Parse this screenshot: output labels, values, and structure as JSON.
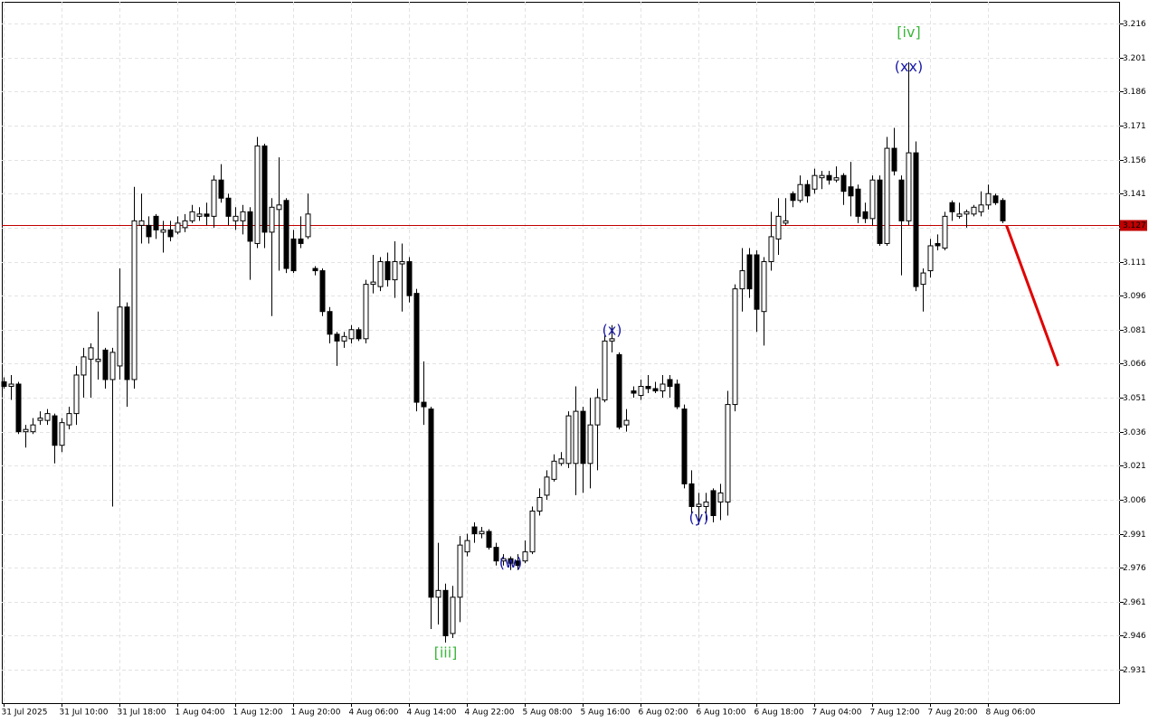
{
  "chart_data": {
    "type": "candlestick",
    "categories": [
      "31 Jul 2025",
      null,
      null,
      null,
      null,
      null,
      null,
      null,
      "31 Jul 10:00",
      null,
      null,
      null,
      null,
      null,
      null,
      null,
      "31 Jul 18:00",
      null,
      null,
      null,
      null,
      null,
      null,
      null,
      "1 Aug 04:00",
      null,
      null,
      null,
      null,
      null,
      null,
      null,
      "1 Aug 12:00",
      null,
      null,
      null,
      null,
      null,
      null,
      null,
      "1 Aug 20:00",
      null,
      null,
      null,
      null,
      null,
      null,
      null,
      "4 Aug 06:00",
      null,
      null,
      null,
      null,
      null,
      null,
      null,
      "4 Aug 14:00",
      null,
      null,
      null,
      null,
      null,
      null,
      null,
      "4 Aug 22:00",
      null,
      null,
      null,
      null,
      null,
      null,
      null,
      "5 Aug 08:00",
      null,
      null,
      null,
      null,
      null,
      null,
      null,
      "5 Aug 16:00",
      null,
      null,
      null,
      null,
      null,
      null,
      null,
      "6 Aug 02:00",
      null,
      null,
      null,
      null,
      null,
      null,
      null,
      "6 Aug 10:00",
      null,
      null,
      null,
      null,
      null,
      null,
      null,
      "6 Aug 18:00",
      null,
      null,
      null,
      null,
      null,
      null,
      null,
      "7 Aug 04:00",
      null,
      null,
      null,
      null,
      null,
      null,
      null,
      "7 Aug 12:00",
      null,
      null,
      null,
      null,
      null,
      null,
      null,
      "7 Aug 20:00",
      null,
      null,
      null,
      null,
      null,
      null,
      null,
      "8 Aug 06:00",
      null,
      null
    ],
    "open": [
      3.058,
      3.056,
      3.057,
      3.036,
      3.036,
      3.041,
      3.041,
      3.043,
      3.03,
      3.039,
      3.044,
      3.061,
      3.068,
      3.067,
      3.072,
      3.059,
      3.065,
      3.091,
      3.059,
      3.127,
      3.127,
      3.131,
      3.124,
      3.125,
      3.124,
      3.126,
      3.129,
      3.131,
      3.132,
      3.131,
      3.147,
      3.139,
      3.129,
      3.129,
      3.133,
      3.119,
      3.162,
      3.124,
      3.134,
      3.138,
      3.121,
      3.121,
      3.122,
      3.108,
      3.107,
      3.089,
      3.079,
      3.076,
      3.077,
      3.081,
      3.077,
      3.101,
      3.1,
      3.111,
      3.103,
      3.11,
      3.111,
      3.097,
      3.049,
      3.046,
      2.963,
      2.966,
      2.947,
      2.963,
      2.983,
      2.994,
      2.991,
      2.992,
      2.985,
      2.979,
      2.98,
      2.979,
      2.979,
      2.983,
      3.001,
      3.008,
      3.015,
      3.022,
      3.022,
      3.022,
      3.045,
      3.022,
      3.039,
      3.05,
      3.076,
      3.07,
      3.039,
      3.054,
      3.052,
      3.056,
      3.055,
      3.054,
      3.059,
      3.057,
      3.046,
      3.013,
      3.003,
      3.003,
      3.01,
      3.005,
      3.005,
      3.048,
      3.099,
      3.114,
      3.114,
      3.089,
      3.111,
      3.121,
      3.128,
      3.141,
      3.138,
      3.145,
      3.143,
      3.148,
      3.149,
      3.147,
      3.149,
      3.144,
      3.143,
      3.133,
      3.13,
      3.147,
      3.119,
      3.161,
      3.147,
      3.129,
      3.159,
      3.101,
      3.107,
      3.119,
      3.117,
      3.137,
      3.131,
      3.132,
      3.132,
      3.133,
      3.136,
      3.14,
      3.138
    ],
    "high": [
      3.06,
      3.061,
      3.058,
      3.039,
      3.042,
      3.045,
      3.046,
      3.044,
      3.042,
      3.047,
      3.065,
      3.073,
      3.075,
      3.089,
      3.073,
      3.073,
      3.108,
      3.093,
      3.144,
      3.141,
      3.131,
      3.132,
      3.129,
      3.129,
      3.131,
      3.132,
      3.136,
      3.135,
      3.137,
      3.149,
      3.154,
      3.141,
      3.135,
      3.136,
      3.135,
      3.166,
      3.163,
      3.139,
      3.157,
      3.139,
      3.125,
      3.131,
      3.141,
      3.109,
      3.108,
      3.091,
      3.08,
      3.08,
      3.083,
      3.082,
      3.103,
      3.114,
      3.113,
      3.115,
      3.12,
      3.119,
      3.113,
      3.099,
      3.067,
      3.047,
      2.987,
      2.969,
      2.968,
      2.99,
      2.991,
      2.996,
      2.994,
      2.993,
      2.987,
      2.982,
      2.981,
      2.982,
      2.988,
      3.003,
      3.011,
      3.019,
      3.026,
      3.027,
      3.045,
      3.056,
      3.047,
      3.051,
      3.055,
      3.079,
      3.083,
      3.071,
      3.046,
      3.056,
      3.059,
      3.061,
      3.058,
      3.061,
      3.061,
      3.059,
      3.048,
      3.019,
      3.009,
      3.009,
      3.011,
      3.013,
      3.054,
      3.101,
      3.117,
      3.117,
      3.116,
      3.113,
      3.133,
      3.139,
      3.139,
      3.142,
      3.149,
      3.147,
      3.152,
      3.151,
      3.151,
      3.153,
      3.15,
      3.155,
      3.145,
      3.137,
      3.149,
      3.149,
      3.166,
      3.17,
      3.149,
      3.199,
      3.164,
      3.108,
      3.121,
      3.123,
      3.133,
      3.138,
      3.137,
      3.134,
      3.136,
      3.142,
      3.145,
      3.141,
      3.139
    ],
    "low": [
      3.055,
      3.05,
      3.035,
      3.029,
      3.035,
      3.039,
      3.039,
      3.022,
      3.027,
      3.037,
      3.039,
      3.051,
      3.051,
      3.059,
      3.055,
      3.003,
      3.059,
      3.047,
      3.055,
      3.119,
      3.119,
      3.121,
      3.115,
      3.12,
      3.123,
      3.124,
      3.128,
      3.129,
      3.127,
      3.126,
      3.137,
      3.127,
      3.125,
      3.123,
      3.103,
      3.117,
      3.117,
      3.087,
      3.107,
      3.106,
      3.106,
      3.117,
      3.121,
      3.105,
      3.087,
      3.075,
      3.065,
      3.073,
      3.075,
      3.076,
      3.075,
      3.097,
      3.098,
      3.1,
      3.095,
      3.089,
      3.093,
      3.045,
      3.039,
      2.949,
      2.951,
      2.943,
      2.945,
      2.952,
      2.981,
      2.987,
      2.989,
      2.984,
      2.977,
      2.977,
      2.975,
      2.975,
      2.978,
      2.982,
      2.999,
      3.006,
      3.014,
      3.021,
      3.02,
      3.008,
      3.009,
      3.011,
      3.019,
      3.049,
      3.071,
      3.037,
      3.036,
      3.051,
      3.05,
      3.053,
      3.053,
      3.051,
      3.051,
      3.046,
      3.011,
      3.0,
      2.995,
      2.997,
      2.996,
      2.997,
      2.999,
      3.045,
      3.089,
      3.095,
      3.08,
      3.074,
      3.107,
      3.114,
      3.127,
      3.135,
      3.137,
      3.137,
      3.141,
      3.143,
      3.145,
      3.146,
      3.136,
      3.131,
      3.128,
      3.128,
      3.127,
      3.118,
      3.118,
      3.149,
      3.105,
      3.127,
      3.098,
      3.089,
      3.104,
      3.116,
      3.116,
      3.129,
      3.13,
      3.126,
      3.131,
      3.131,
      3.134,
      3.136,
      3.128
    ],
    "close": [
      3.056,
      3.057,
      3.036,
      3.037,
      3.039,
      3.042,
      3.044,
      3.03,
      3.04,
      3.044,
      3.061,
      3.069,
      3.073,
      3.068,
      3.059,
      3.071,
      3.091,
      3.059,
      3.129,
      3.129,
      3.122,
      3.125,
      3.125,
      3.122,
      3.128,
      3.129,
      3.133,
      3.132,
      3.131,
      3.147,
      3.139,
      3.131,
      3.131,
      3.133,
      3.12,
      3.162,
      3.124,
      3.135,
      3.136,
      3.108,
      3.107,
      3.119,
      3.132,
      3.107,
      3.089,
      3.079,
      3.076,
      3.078,
      3.081,
      3.077,
      3.101,
      3.102,
      3.111,
      3.103,
      3.111,
      3.111,
      3.096,
      3.049,
      3.047,
      2.963,
      2.966,
      2.946,
      2.963,
      2.986,
      2.988,
      2.991,
      2.992,
      2.985,
      2.979,
      2.98,
      2.978,
      2.977,
      2.983,
      3.001,
      3.007,
      3.016,
      3.023,
      3.024,
      3.043,
      3.045,
      3.022,
      3.039,
      3.051,
      3.076,
      3.077,
      3.038,
      3.041,
      3.053,
      3.056,
      3.055,
      3.054,
      3.057,
      3.056,
      3.047,
      3.013,
      3.003,
      3.004,
      3.005,
      2.999,
      3.009,
      3.048,
      3.099,
      3.107,
      3.099,
      3.09,
      3.111,
      3.122,
      3.131,
      3.129,
      3.138,
      3.145,
      3.14,
      3.149,
      3.149,
      3.147,
      3.148,
      3.142,
      3.14,
      3.131,
      3.13,
      3.147,
      3.119,
      3.161,
      3.151,
      3.129,
      3.159,
      3.1,
      3.106,
      3.118,
      3.118,
      3.131,
      3.133,
      3.132,
      3.133,
      3.135,
      3.136,
      3.141,
      3.137,
      3.129
    ],
    "up_color": "#ffffff",
    "down_color": "#000000",
    "ylim": [
      2.9163,
      3.2256
    ],
    "yticks": [
      3.216,
      3.201,
      3.186,
      3.171,
      3.156,
      3.141,
      3.126,
      3.111,
      3.096,
      3.081,
      3.066,
      3.051,
      3.036,
      3.021,
      3.006,
      2.991,
      2.976,
      2.961,
      2.946,
      2.931
    ],
    "grid": true,
    "current_price": 3.127,
    "price_line_color": "#c00000",
    "forecast": {
      "values": [
        3.127,
        3.065
      ],
      "color": "#e00000"
    },
    "annotations": [
      {
        "text": "[iii]",
        "color": "#3cb83c",
        "candle": 61,
        "position": "below"
      },
      {
        "text": "(w)",
        "color": "#1a1aa8",
        "candle": 70,
        "position": "below"
      },
      {
        "text": "(x)",
        "color": "#1a1aa8",
        "candle": 84,
        "position": "above"
      },
      {
        "text": "(y)",
        "color": "#1a1aa8",
        "candle": 96,
        "position": "below"
      },
      {
        "text": "(xx)",
        "color": "#1a1aa8",
        "candle": 125,
        "position": "above"
      },
      {
        "text": "[iv]",
        "color": "#3cb83c",
        "candle": 125,
        "position": "above"
      }
    ]
  }
}
